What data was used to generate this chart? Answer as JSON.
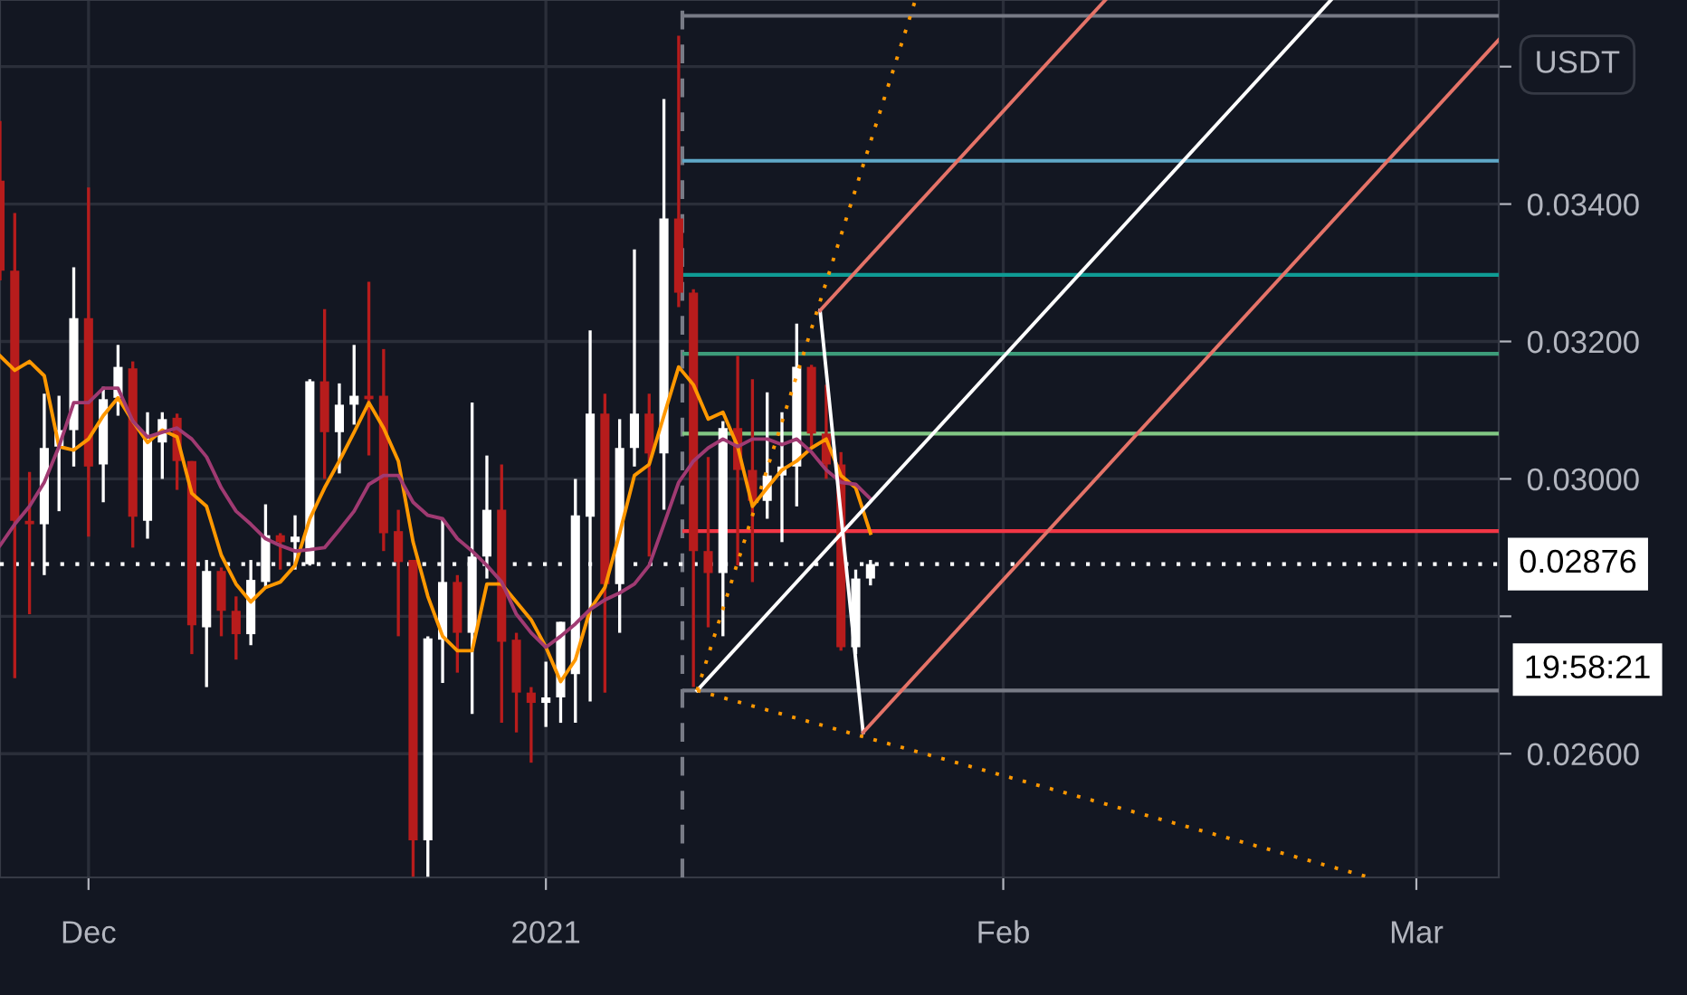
{
  "chart_data": {
    "type": "candlestick",
    "x": [
      "2020-11-25",
      "2020-11-26",
      "2020-11-27",
      "2020-11-28",
      "2020-11-29",
      "2020-11-30",
      "2020-12-01",
      "2020-12-02",
      "2020-12-03",
      "2020-12-04",
      "2020-12-05",
      "2020-12-06",
      "2020-12-07",
      "2020-12-08",
      "2020-12-09",
      "2020-12-10",
      "2020-12-11",
      "2020-12-12",
      "2020-12-13",
      "2020-12-14",
      "2020-12-15",
      "2020-12-16",
      "2020-12-17",
      "2020-12-18",
      "2020-12-19",
      "2020-12-20",
      "2020-12-21",
      "2020-12-22",
      "2020-12-23",
      "2020-12-24",
      "2020-12-25",
      "2020-12-26",
      "2020-12-27",
      "2020-12-28",
      "2020-12-29",
      "2020-12-30",
      "2020-12-31",
      "2021-01-01",
      "2021-01-02",
      "2021-01-03",
      "2021-01-04",
      "2021-01-05",
      "2021-01-06",
      "2021-01-07",
      "2021-01-08",
      "2021-01-09",
      "2021-01-10",
      "2021-01-11",
      "2021-01-12",
      "2021-01-13",
      "2021-01-14",
      "2021-01-15",
      "2021-01-16",
      "2021-01-17",
      "2021-01-18",
      "2021-01-19",
      "2021-01-20",
      "2021-01-21",
      "2021-01-22",
      "2021-01-23"
    ],
    "ohlc": [
      [
        0.03434,
        0.03521,
        0.03289,
        0.03303
      ],
      [
        0.03303,
        0.03387,
        0.0271,
        0.02939
      ],
      [
        0.02939,
        0.0301,
        0.02803,
        0.02934
      ],
      [
        0.02934,
        0.03124,
        0.0286,
        0.03045
      ],
      [
        0.03047,
        0.03121,
        0.02953,
        0.03071
      ],
      [
        0.03071,
        0.03308,
        0.03018,
        0.03234
      ],
      [
        0.03234,
        0.03424,
        0.02916,
        0.03018
      ],
      [
        0.03021,
        0.03134,
        0.02966,
        0.03116
      ],
      [
        0.03118,
        0.03195,
        0.03092,
        0.03163
      ],
      [
        0.03161,
        0.03171,
        0.029,
        0.02945
      ],
      [
        0.02939,
        0.03097,
        0.02913,
        0.03058
      ],
      [
        0.03053,
        0.03097,
        0.03,
        0.03087
      ],
      [
        0.03089,
        0.03095,
        0.02984,
        0.03026
      ],
      [
        0.03026,
        0.03026,
        0.02745,
        0.02787
      ],
      [
        0.02784,
        0.02882,
        0.02697,
        0.02866
      ],
      [
        0.02866,
        0.02871,
        0.02771,
        0.02808
      ],
      [
        0.02808,
        0.02829,
        0.02737,
        0.02774
      ],
      [
        0.02774,
        0.02882,
        0.02758,
        0.02853
      ],
      [
        0.0285,
        0.02963,
        0.02842,
        0.02918
      ],
      [
        0.02918,
        0.02921,
        0.02868,
        0.02908
      ],
      [
        0.02908,
        0.02947,
        0.02868,
        0.02916
      ],
      [
        0.02876,
        0.03145,
        0.02874,
        0.03142
      ],
      [
        0.03142,
        0.03247,
        0.03,
        0.03068
      ],
      [
        0.03068,
        0.03139,
        0.03008,
        0.03108
      ],
      [
        0.03108,
        0.03195,
        0.03079,
        0.03121
      ],
      [
        0.03121,
        0.03287,
        0.03034,
        0.03116
      ],
      [
        0.03121,
        0.03189,
        0.02895,
        0.02921
      ],
      [
        0.02924,
        0.02955,
        0.02771,
        0.02879
      ],
      [
        0.02882,
        0.02882,
        0.02421,
        0.02474
      ],
      [
        0.02474,
        0.02771,
        0.02421,
        0.02768
      ],
      [
        0.02766,
        0.02942,
        0.02703,
        0.0285
      ],
      [
        0.0285,
        0.0286,
        0.02718,
        0.02776
      ],
      [
        0.02776,
        0.03111,
        0.02658,
        0.02887
      ],
      [
        0.02887,
        0.03034,
        0.02855,
        0.02955
      ],
      [
        0.02955,
        0.03021,
        0.02645,
        0.02763
      ],
      [
        0.02766,
        0.02776,
        0.02631,
        0.02689
      ],
      [
        0.02689,
        0.02697,
        0.02587,
        0.02674
      ],
      [
        0.02674,
        0.02734,
        0.02639,
        0.02682
      ],
      [
        0.02682,
        0.02792,
        0.02645,
        0.02792
      ],
      [
        0.02716,
        0.03,
        0.02645,
        0.02947
      ],
      [
        0.02945,
        0.03216,
        0.02676,
        0.03095
      ],
      [
        0.03095,
        0.03124,
        0.02689,
        0.02847
      ],
      [
        0.02847,
        0.03087,
        0.02776,
        0.03045
      ],
      [
        0.03045,
        0.03334,
        0.03018,
        0.03095
      ],
      [
        0.03095,
        0.03124,
        0.02887,
        0.03037
      ],
      [
        0.03037,
        0.03553,
        0.02955,
        0.03379
      ],
      [
        0.03379,
        0.03645,
        0.0325,
        0.03271
      ],
      [
        0.03271,
        0.03276,
        0.02697,
        0.02895
      ],
      [
        0.02895,
        0.03032,
        0.02784,
        0.02863
      ],
      [
        0.02863,
        0.03084,
        0.02771,
        0.03074
      ],
      [
        0.03074,
        0.03179,
        0.02874,
        0.03013
      ],
      [
        0.03013,
        0.03145,
        0.0285,
        0.02968
      ],
      [
        0.02968,
        0.03126,
        0.02942,
        0.03005
      ],
      [
        0.03005,
        0.03097,
        0.02908,
        0.03018
      ],
      [
        0.03018,
        0.03226,
        0.0296,
        0.03163
      ],
      [
        0.03163,
        0.03166,
        0.03047,
        0.03066
      ],
      [
        0.03066,
        0.03137,
        0.03,
        0.03021
      ],
      [
        0.03021,
        0.03039,
        0.0275,
        0.02755
      ],
      [
        0.02755,
        0.02868,
        0.02745,
        0.02855
      ],
      [
        0.02855,
        0.02882,
        0.02845,
        0.02876
      ]
    ],
    "colors": [
      "#b71c1c",
      "#b71c1c",
      "#b71c1c",
      "#ffffff",
      "#ffffff",
      "#ffffff",
      "#b71c1c",
      "#ffffff",
      "#ffffff",
      "#b71c1c",
      "#ffffff",
      "#ffffff",
      "#b71c1c",
      "#b71c1c",
      "#ffffff",
      "#b71c1c",
      "#b71c1c",
      "#ffffff",
      "#ffffff",
      "#b71c1c",
      "#ffffff",
      "#ffffff",
      "#b71c1c",
      "#ffffff",
      "#ffffff",
      "#b71c1c",
      "#b71c1c",
      "#b71c1c",
      "#b71c1c",
      "#ffffff",
      "#ffffff",
      "#b71c1c",
      "#ffffff",
      "#ffffff",
      "#b71c1c",
      "#b71c1c",
      "#b71c1c",
      "#ffffff",
      "#ffffff",
      "#ffffff",
      "#ffffff",
      "#b71c1c",
      "#ffffff",
      "#ffffff",
      "#b71c1c",
      "#ffffff",
      "#b71c1c",
      "#b71c1c",
      "#b71c1c",
      "#ffffff",
      "#b71c1c",
      "#b71c1c",
      "#ffffff",
      "#ffffff",
      "#ffffff",
      "#b71c1c",
      "#b71c1c",
      "#b71c1c",
      "#ffffff",
      "#ffffff"
    ],
    "series": [
      {
        "type": "line",
        "color": "#ff9800",
        "values": [
          0.03179,
          0.03158,
          0.03171,
          0.0315,
          0.03047,
          0.03042,
          0.03058,
          0.03092,
          0.03118,
          0.03084,
          0.03053,
          0.03071,
          0.03061,
          0.02979,
          0.0296,
          0.02889,
          0.02847,
          0.02821,
          0.02842,
          0.0285,
          0.02874,
          0.02942,
          0.02987,
          0.03026,
          0.03068,
          0.03111,
          0.03074,
          0.03026,
          0.02908,
          0.02829,
          0.02771,
          0.0275,
          0.0275,
          0.02847,
          0.02847,
          0.02821,
          0.02795,
          0.02755,
          0.02705,
          0.02737,
          0.0281,
          0.02842,
          0.02921,
          0.03005,
          0.03021,
          0.03092,
          0.03163,
          0.03137,
          0.03087,
          0.03097,
          0.03047,
          0.0296,
          0.02987,
          0.03013,
          0.03026,
          0.03045,
          0.03058,
          0.03005,
          0.02987,
          0.02921
        ]
      },
      {
        "type": "line",
        "color": "#a03a72",
        "values": [
          0.02903,
          0.02934,
          0.0296,
          0.02995,
          0.03047,
          0.03111,
          0.03111,
          0.03132,
          0.03132,
          0.03084,
          0.03061,
          0.03068,
          0.03074,
          0.03058,
          0.03032,
          0.02987,
          0.02953,
          0.02934,
          0.02913,
          0.02903,
          0.02895,
          0.02897,
          0.029,
          0.02926,
          0.02953,
          0.02992,
          0.03005,
          0.03005,
          0.02966,
          0.02947,
          0.02942,
          0.02913,
          0.02895,
          0.02874,
          0.0285,
          0.02803,
          0.02776,
          0.02755,
          0.02771,
          0.02789,
          0.0281,
          0.02824,
          0.02834,
          0.02847,
          0.02874,
          0.02934,
          0.02995,
          0.03026,
          0.03045,
          0.03058,
          0.03047,
          0.03058,
          0.03058,
          0.0305,
          0.03058,
          0.03039,
          0.03013,
          0.02995,
          0.02992,
          0.02971
        ]
      },
      {
        "type": "line",
        "color": "#ffffff",
        "x": [
          "2021-01-11T06:00",
          "2021-02-23T05:00"
        ],
        "values": [
          0.02692,
          0.03697
        ]
      },
      {
        "type": "line",
        "color": "#ffffff",
        "x": [
          "2021-01-19T14:00",
          "2021-01-22T12:00"
        ],
        "values": [
          0.03245,
          0.02631
        ]
      },
      {
        "type": "line",
        "color": "#e57368",
        "x": [
          "2021-01-19T14:00",
          "2021-02-07T22:00"
        ],
        "values": [
          0.03245,
          0.03697
        ]
      },
      {
        "type": "line",
        "color": "#e57368",
        "x": [
          "2021-01-22T12:00",
          "2021-03-06T14:00"
        ],
        "values": [
          0.02631,
          0.03639
        ]
      },
      {
        "type": "line",
        "color": "#ff9800",
        "line_style": "dotted",
        "x": [
          "2021-01-11T06:00",
          "2021-01-26T01:00"
        ],
        "values": [
          0.02692,
          0.03697
        ]
      },
      {
        "type": "line",
        "color": "#ff9800",
        "line_style": "dotted",
        "x": [
          "2021-01-11T06:00",
          "2021-02-25T16:00"
        ],
        "values": [
          0.02692,
          0.02421
        ]
      }
    ],
    "ref_lines": [
      {
        "axis": "x",
        "value": "2021-01-10T06:00",
        "color": "#787b86",
        "line_style": "dashed"
      },
      {
        "axis": "y",
        "value": 0.03674,
        "color": "#787b86"
      },
      {
        "axis": "y",
        "value": 0.03463,
        "color": "#5fa8c8"
      },
      {
        "axis": "y",
        "value": 0.03297,
        "color": "#0f9b94"
      },
      {
        "axis": "y",
        "value": 0.03182,
        "color": "#3d9c7a"
      },
      {
        "axis": "y",
        "value": 0.03066,
        "color": "#81c784"
      },
      {
        "axis": "y",
        "value": 0.02924,
        "color": "#f23645"
      },
      {
        "axis": "y",
        "value": 0.02692,
        "color": "#787b86"
      },
      {
        "axis": "y",
        "value": 0.02876,
        "color": "#ffffff",
        "line_style": "dotted",
        "label": "0.02876"
      }
    ],
    "annotations": [
      "USDT",
      "19:58:21"
    ],
    "xlim": [
      "2020-11-25",
      "2021-03-06T14:00"
    ],
    "xticks": [
      {
        "value": "2020-12-01",
        "label": "Dec"
      },
      {
        "value": "2021-01-01",
        "label": "2021"
      },
      {
        "value": "2021-02-01",
        "label": "Feb"
      },
      {
        "value": "2021-03-01",
        "label": "Mar"
      }
    ],
    "ylim": [
      0.0242,
      0.03697
    ],
    "yticks": [
      {
        "value": 0.026,
        "label": "0.02600"
      },
      {
        "value": 0.028,
        "label": null
      },
      {
        "value": 0.03,
        "label": "0.03000"
      },
      {
        "value": 0.032,
        "label": "0.03200"
      },
      {
        "value": 0.034,
        "label": "0.03400"
      },
      {
        "value": 0.036,
        "label": null
      }
    ],
    "grid": true
  }
}
